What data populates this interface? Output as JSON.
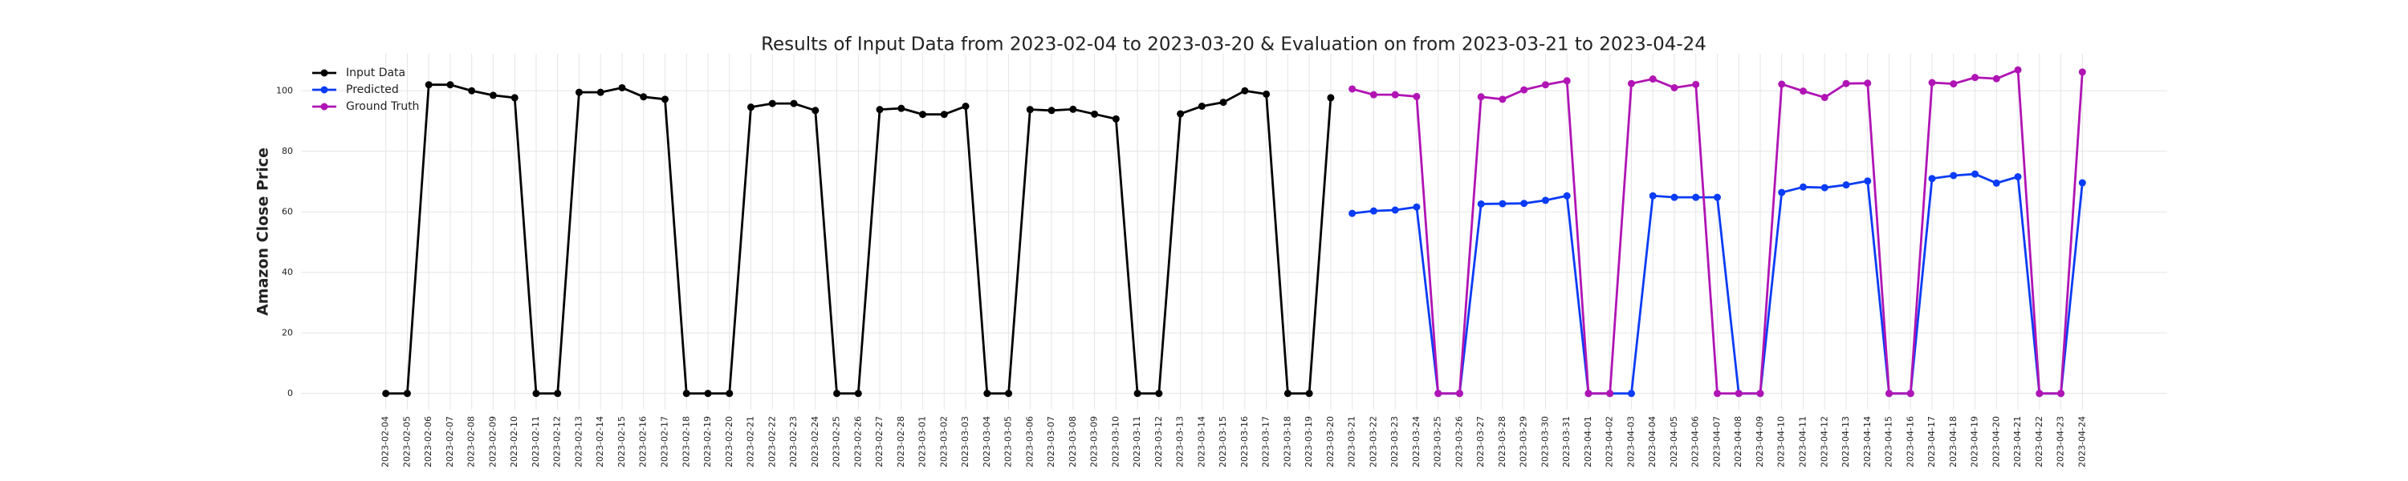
{
  "chart_data": {
    "type": "line",
    "title": "Results of Input Data from 2023-02-04 to 2023-03-20 & Evaluation on from 2023-03-21 to 2023-04-24",
    "y_label": "Amazon Close Price",
    "categories": [
      "2023-02-04",
      "2023-02-05",
      "2023-02-06",
      "2023-02-07",
      "2023-02-08",
      "2023-02-09",
      "2023-02-10",
      "2023-02-11",
      "2023-02-12",
      "2023-02-13",
      "2023-02-14",
      "2023-02-15",
      "2023-02-16",
      "2023-02-17",
      "2023-02-18",
      "2023-02-19",
      "2023-02-20",
      "2023-02-21",
      "2023-02-22",
      "2023-02-23",
      "2023-02-24",
      "2023-02-25",
      "2023-02-26",
      "2023-02-27",
      "2023-02-28",
      "2023-03-01",
      "2023-03-02",
      "2023-03-03",
      "2023-03-04",
      "2023-03-05",
      "2023-03-06",
      "2023-03-07",
      "2023-03-08",
      "2023-03-09",
      "2023-03-10",
      "2023-03-11",
      "2023-03-12",
      "2023-03-13",
      "2023-03-14",
      "2023-03-15",
      "2023-03-16",
      "2023-03-17",
      "2023-03-18",
      "2023-03-19",
      "2023-03-20",
      "2023-03-21",
      "2023-03-22",
      "2023-03-23",
      "2023-03-24",
      "2023-03-25",
      "2023-03-26",
      "2023-03-27",
      "2023-03-28",
      "2023-03-29",
      "2023-03-30",
      "2023-03-31",
      "2023-04-01",
      "2023-04-02",
      "2023-04-03",
      "2023-04-04",
      "2023-04-05",
      "2023-04-06",
      "2023-04-07",
      "2023-04-08",
      "2023-04-09",
      "2023-04-10",
      "2023-04-11",
      "2023-04-12",
      "2023-04-13",
      "2023-04-14",
      "2023-04-15",
      "2023-04-16",
      "2023-04-17",
      "2023-04-18",
      "2023-04-19",
      "2023-04-20",
      "2023-04-21",
      "2023-04-22",
      "2023-04-23",
      "2023-04-24"
    ],
    "series": [
      {
        "name": "Input Data",
        "color": "#000000",
        "values": [
          0,
          0,
          102,
          102,
          100,
          98.5,
          97.7,
          0,
          0,
          99.5,
          99.5,
          101,
          98,
          97.2,
          0,
          0,
          0,
          94.6,
          95.8,
          95.8,
          93.5,
          0,
          0,
          93.8,
          94.2,
          92.2,
          92.2,
          94.9,
          0,
          0,
          93.8,
          93.5,
          93.9,
          92.3,
          90.7,
          0,
          0,
          92.4,
          94.9,
          96.2,
          100,
          98.9,
          0,
          0,
          97.7,
          null,
          null,
          null,
          null,
          null,
          null,
          null,
          null,
          null,
          null,
          null,
          null,
          null,
          null,
          null,
          null,
          null,
          null,
          null,
          null,
          null,
          null,
          null,
          null,
          null,
          null,
          null,
          null,
          null,
          null,
          null,
          null,
          null,
          null,
          null
        ]
      },
      {
        "name": "Predicted",
        "color": "#0a3cf5",
        "values": [
          null,
          null,
          null,
          null,
          null,
          null,
          null,
          null,
          null,
          null,
          null,
          null,
          null,
          null,
          null,
          null,
          null,
          null,
          null,
          null,
          null,
          null,
          null,
          null,
          null,
          null,
          null,
          null,
          null,
          null,
          null,
          null,
          null,
          null,
          null,
          null,
          null,
          null,
          null,
          null,
          null,
          null,
          null,
          null,
          null,
          59.5,
          60.3,
          60.6,
          61.6,
          0,
          0,
          62.6,
          62.7,
          62.8,
          63.8,
          65.3,
          0,
          0,
          0,
          65.3,
          64.8,
          64.8,
          64.8,
          0,
          0,
          66.4,
          68.2,
          68,
          68.9,
          70.2,
          0,
          0,
          71,
          72,
          72.5,
          69.5,
          71.6,
          0,
          0,
          69.6
        ]
      },
      {
        "name": "Ground Truth",
        "color": "#b014b4",
        "values": [
          null,
          null,
          null,
          null,
          null,
          null,
          null,
          null,
          null,
          null,
          null,
          null,
          null,
          null,
          null,
          null,
          null,
          null,
          null,
          null,
          null,
          null,
          null,
          null,
          null,
          null,
          null,
          null,
          null,
          null,
          null,
          null,
          null,
          null,
          null,
          null,
          null,
          null,
          null,
          null,
          null,
          null,
          null,
          null,
          null,
          100.6,
          98.7,
          98.7,
          98.1,
          0,
          0,
          98,
          97.2,
          100.3,
          102,
          103.3,
          0,
          0,
          102.4,
          103.9,
          101,
          102.1,
          0,
          0,
          0,
          102.2,
          99.9,
          97.8,
          102.4,
          102.5,
          0,
          0,
          102.7,
          102.3,
          104.4,
          104,
          106.9,
          0,
          0,
          106.2
        ]
      }
    ],
    "ylim": [
      -5.35,
      112.25
    ],
    "yticks": [
      0,
      20,
      40,
      60,
      80,
      100
    ],
    "grid": true,
    "legend": "upper left"
  }
}
